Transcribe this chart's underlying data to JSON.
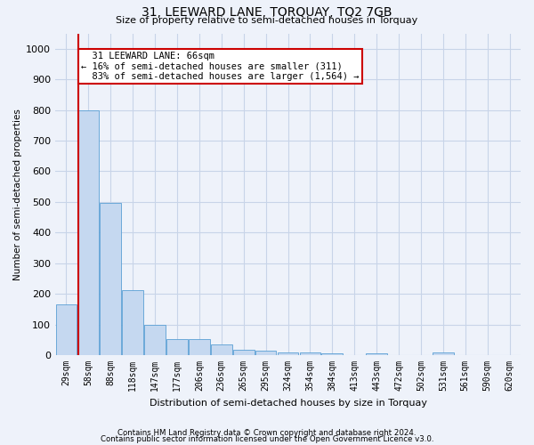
{
  "title": "31, LEEWARD LANE, TORQUAY, TQ2 7GB",
  "subtitle": "Size of property relative to semi-detached houses in Torquay",
  "xlabel": "Distribution of semi-detached houses by size in Torquay",
  "ylabel": "Number of semi-detached properties",
  "footer_line1": "Contains HM Land Registry data © Crown copyright and database right 2024.",
  "footer_line2": "Contains public sector information licensed under the Open Government Licence v3.0.",
  "categories": [
    "29sqm",
    "58sqm",
    "88sqm",
    "118sqm",
    "147sqm",
    "177sqm",
    "206sqm",
    "236sqm",
    "265sqm",
    "295sqm",
    "324sqm",
    "354sqm",
    "384sqm",
    "413sqm",
    "443sqm",
    "472sqm",
    "502sqm",
    "531sqm",
    "561sqm",
    "590sqm",
    "620sqm"
  ],
  "values": [
    165,
    800,
    497,
    213,
    100,
    52,
    52,
    34,
    18,
    14,
    10,
    8,
    6,
    0,
    7,
    0,
    0,
    8,
    0,
    0,
    0
  ],
  "bar_color": "#c5d8f0",
  "bar_edge_color": "#5a9fd4",
  "grid_color": "#c8d4e8",
  "property_line_bar_index": 1,
  "property_label": "31 LEEWARD LANE: 66sqm",
  "smaller_pct": 16,
  "smaller_n": 311,
  "larger_pct": 83,
  "larger_n": "1,564",
  "annotation_box_color": "#ffffff",
  "annotation_box_edge": "#cc0000",
  "vline_color": "#cc0000",
  "ylim": [
    0,
    1050
  ],
  "yticks": [
    0,
    100,
    200,
    300,
    400,
    500,
    600,
    700,
    800,
    900,
    1000
  ],
  "bg_color": "#eef2fa",
  "title_fontsize": 10,
  "subtitle_fontsize": 8
}
